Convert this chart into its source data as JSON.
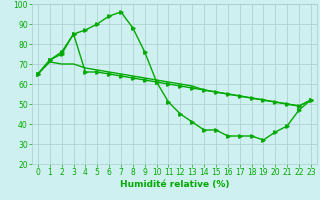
{
  "xlabel": "Humidité relative (%)",
  "background_color": "#cff0f0",
  "grid_color": "#aacccc",
  "line_color": "#00aa00",
  "x": [
    0,
    1,
    2,
    3,
    4,
    5,
    6,
    7,
    8,
    9,
    10,
    11,
    12,
    13,
    14,
    15,
    16,
    17,
    18,
    19,
    20,
    21,
    22,
    23
  ],
  "line1": [
    65,
    72,
    76,
    85,
    87,
    90,
    94,
    96,
    88,
    76,
    61,
    51,
    45,
    41,
    37,
    37,
    34,
    34,
    34,
    32,
    36,
    39,
    47,
    52
  ],
  "line2": [
    65,
    72,
    75,
    85,
    66,
    66,
    65,
    64,
    63,
    62,
    61,
    60,
    59,
    58,
    57,
    56,
    55,
    54,
    53,
    52,
    51,
    50,
    49,
    52
  ],
  "line3": [
    65,
    71,
    70,
    70,
    68,
    67,
    66,
    65,
    64,
    63,
    62,
    61,
    60,
    59,
    57,
    56,
    55,
    54,
    53,
    52,
    51,
    50,
    49,
    52
  ],
  "ylim": [
    20,
    100
  ],
  "xlim_min": -0.5,
  "xlim_max": 23.5,
  "yticks": [
    20,
    30,
    40,
    50,
    60,
    70,
    80,
    90,
    100
  ],
  "xticks": [
    0,
    1,
    2,
    3,
    4,
    5,
    6,
    7,
    8,
    9,
    10,
    11,
    12,
    13,
    14,
    15,
    16,
    17,
    18,
    19,
    20,
    21,
    22,
    23
  ],
  "marker": ">",
  "markersize": 2.5,
  "linewidth": 1.0,
  "tick_labelsize": 5.5,
  "xlabel_fontsize": 6.5
}
